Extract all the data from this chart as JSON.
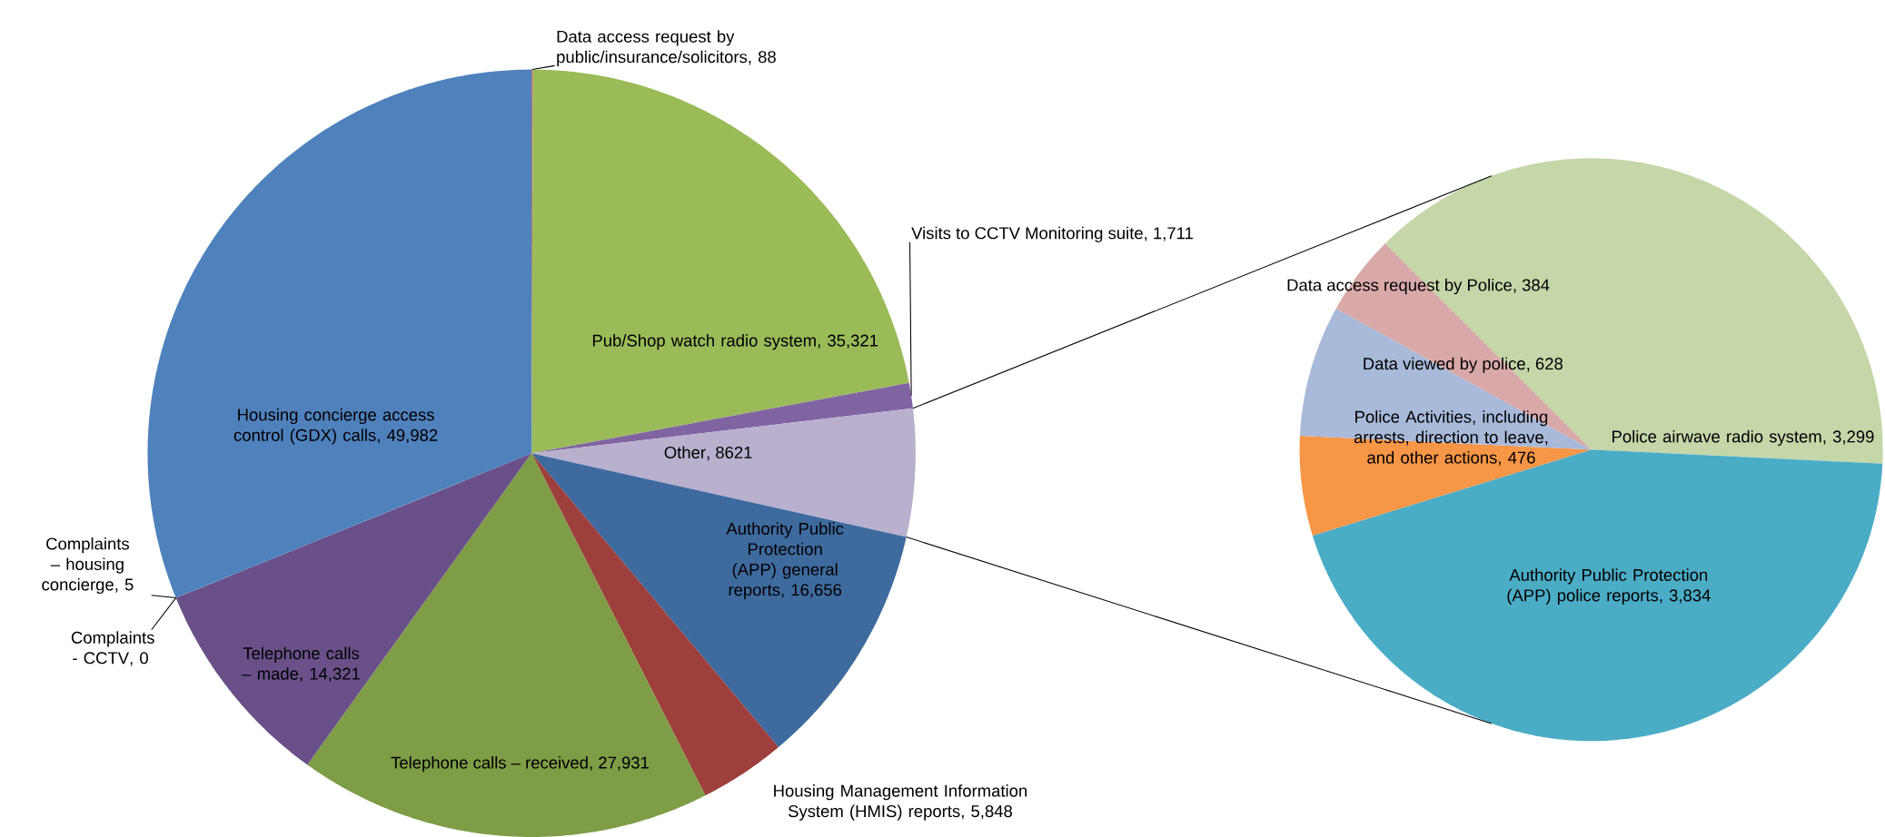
{
  "chart_data": [
    {
      "type": "pie",
      "categories": [
        "Data access request by public/insurance/solicitors",
        "Pub/Shop watch radio system",
        "Visits to CCTV Monitoring suite",
        "Other",
        "Authority Public Protection (APP) general reports",
        "Housing Management Information System (HMIS) reports",
        "Telephone calls – received",
        "Telephone calls – made",
        "Complaints - CCTV",
        "Complaints – housing concierge",
        "Housing concierge access control (GDX) calls"
      ],
      "values": [
        88,
        35321,
        1711,
        8621,
        16656,
        5848,
        27931,
        14321,
        0,
        5,
        49982
      ],
      "value_labels": [
        ", 88",
        ", 35,321",
        ", 1,711",
        ", 8621",
        ", 16,656",
        ", 5,848",
        ", 27,931",
        ", 14,321",
        ", 0",
        ", 5",
        ", 49,982"
      ],
      "colors": [
        "#c0504d",
        "#9bbb59",
        "#8064a2",
        "#b8b0cd",
        "#3e6a9e",
        "#9d3f3c",
        "#7f9c47",
        "#6a5088",
        "#3e93a8",
        "#4bacc6",
        "#4f81bd"
      ]
    },
    {
      "type": "pie",
      "categories": [
        "Police airwave radio system",
        "Authority Public Protection (APP) police reports",
        "Police Activities, including arrests, direction to leave, and other actions",
        "Data viewed by police",
        "Data access request by Police"
      ],
      "values": [
        3299,
        3834,
        476,
        628,
        384
      ],
      "value_labels": [
        ", 3,299",
        ", 3,834",
        ", 476",
        ", 628",
        ", 384"
      ],
      "colors": [
        "#c5d6a9",
        "#4bacc6",
        "#f79646",
        "#a8b9d9",
        "#d9a9a9"
      ]
    }
  ]
}
